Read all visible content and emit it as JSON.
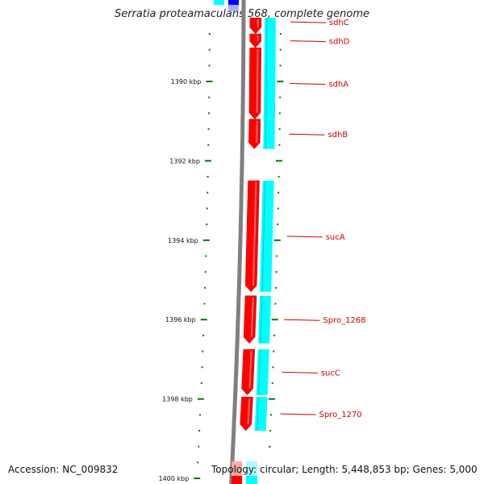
{
  "title": "Serratia proteamaculans 568, complete genome",
  "footer": {
    "accession_label": "Accession:",
    "accession": "NC_009832",
    "topology_label": "Topology:",
    "topology": "circular",
    "length_label": "Length:",
    "length": "5,448,853 bp",
    "genes_label": "Genes:",
    "genes": "5,000"
  },
  "scale": {
    "unit": "kbp",
    "major_ticks": [
      {
        "value": 1390,
        "label": "1390 kbp"
      },
      {
        "value": 1392,
        "label": "1392 kbp"
      },
      {
        "value": 1394,
        "label": "1394 kbp"
      },
      {
        "value": 1396,
        "label": "1396 kbp"
      },
      {
        "value": 1398,
        "label": "1398 kbp"
      },
      {
        "value": 1400,
        "label": "1400 kbp"
      }
    ]
  },
  "genes": [
    {
      "name": "sdhC",
      "start": 1388.4,
      "end": 1388.8,
      "strand": "+"
    },
    {
      "name": "sdhD",
      "start": 1388.8,
      "end": 1389.15,
      "strand": "+"
    },
    {
      "name": "sdhA",
      "start": 1389.15,
      "end": 1390.95,
      "strand": "+"
    },
    {
      "name": "sdhB",
      "start": 1390.95,
      "end": 1391.7,
      "strand": "+"
    },
    {
      "name": "sucA",
      "start": 1392.5,
      "end": 1395.3,
      "strand": "+"
    },
    {
      "name": "Spro_1268",
      "start": 1395.4,
      "end": 1396.6,
      "strand": "+"
    },
    {
      "name": "sucC",
      "start": 1396.75,
      "end": 1397.9,
      "strand": "+"
    },
    {
      "name": "Spro_1270",
      "start": 1397.95,
      "end": 1398.8,
      "strand": "+"
    }
  ],
  "colors": {
    "cds": "#ff0000",
    "gene": "#00ffff",
    "backbone": "#808080",
    "tick": "#007700",
    "label": "#cc0000"
  }
}
